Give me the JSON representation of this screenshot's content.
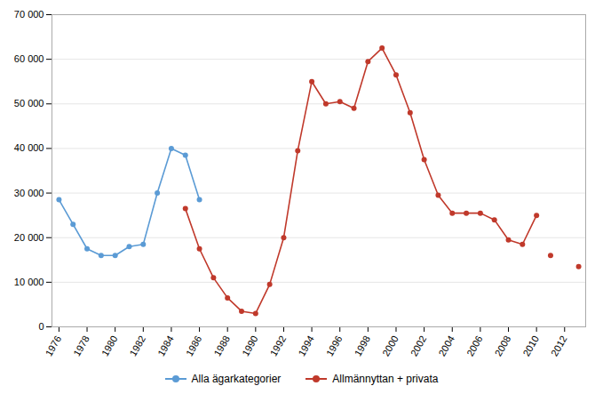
{
  "chart_data": {
    "type": "line",
    "series": [
      {
        "name": "Alla ägarkategorier",
        "color": "#5b9bd5",
        "marker": "circle",
        "x": [
          1976,
          1977,
          1978,
          1979,
          1980,
          1981,
          1982,
          1983,
          1984,
          1985,
          1986
        ],
        "values": [
          28500,
          23000,
          17500,
          16000,
          16000,
          18000,
          18500,
          30000,
          40000,
          38500,
          28500
        ]
      },
      {
        "name": "Allmännyttan + privata",
        "color": "#c0392b",
        "marker": "circle",
        "x": [
          1985,
          1986,
          1987,
          1988,
          1989,
          1990,
          1991,
          1992,
          1993,
          1994,
          1995,
          1996,
          1997,
          1998,
          1999,
          2000,
          2001,
          2002,
          2003,
          2004,
          2005,
          2006,
          2007,
          2008,
          2009,
          2010
        ],
        "values": [
          26500,
          17500,
          11000,
          6500,
          3500,
          3000,
          9500,
          20000,
          39500,
          55000,
          50000,
          50500,
          49000,
          59500,
          62500,
          56500,
          48000,
          37500,
          29500,
          25500,
          25500,
          25500,
          24000,
          19500,
          18500,
          25000
        ]
      },
      {
        "type": "scatter",
        "color": "#c0392b",
        "marker": "circle",
        "x": [
          2011,
          2013
        ],
        "values": [
          16000,
          13500
        ]
      }
    ],
    "xlim": [
      1975.5,
      2013.5
    ],
    "xticks": [
      1976,
      1978,
      1980,
      1982,
      1984,
      1986,
      1988,
      1990,
      1992,
      1994,
      1996,
      1998,
      2000,
      2002,
      2004,
      2006,
      2008,
      2010,
      2012
    ],
    "ylim": [
      0,
      70000
    ],
    "yticks": [
      0,
      {
        "value": 10000,
        "label": "10 000"
      },
      {
        "value": 20000,
        "label": "20 000"
      },
      {
        "value": 30000,
        "label": "30 000"
      },
      {
        "value": 40000,
        "label": "40 000"
      },
      {
        "value": 50000,
        "label": "50 000"
      },
      {
        "value": 60000,
        "label": "60 000"
      },
      {
        "value": 70000,
        "label": "70 000"
      }
    ],
    "grid": true,
    "legend": "bottom"
  }
}
